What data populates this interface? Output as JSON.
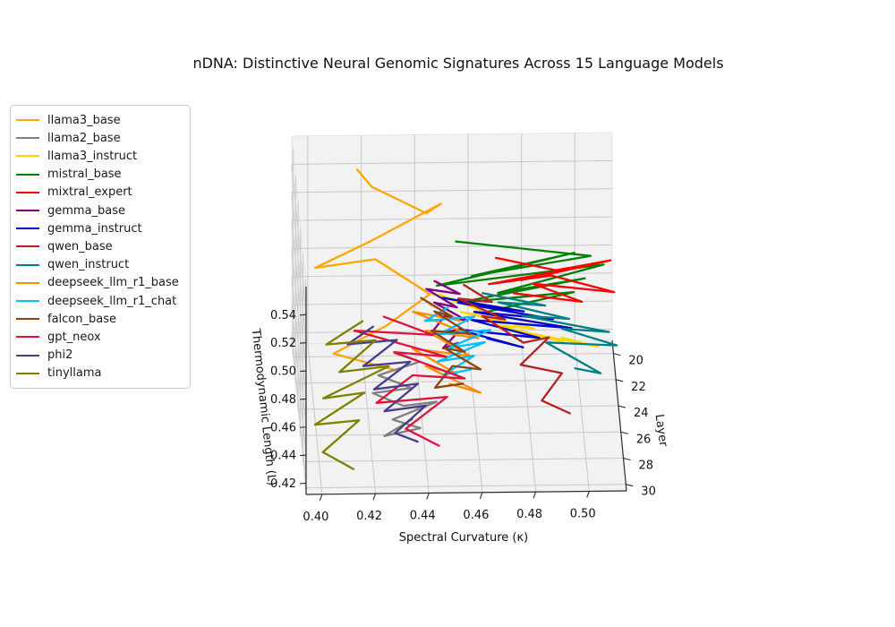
{
  "title": "nDNA: Distinctive Neural Genomic Signatures Across 15 Language Models",
  "chart_data": {
    "type": "line",
    "projection": "3d",
    "title": "nDNA: Distinctive Neural Genomic Signatures Across 15 Language Models",
    "xlabel": "Spectral Curvature (κ)",
    "ylabel": "Layer",
    "zlabel": "Thermodynamic Length (L)",
    "legend_position": "upper left",
    "grid": true,
    "x_range": [
      0.394,
      0.514
    ],
    "y_range": [
      19,
      30.5
    ],
    "z_range": [
      0.412,
      0.56
    ],
    "x_ticks": {
      "values": [
        0.4,
        0.42,
        0.44,
        0.46,
        0.48,
        0.5
      ],
      "labels": [
        "0.40",
        "0.42",
        "0.44",
        "0.46",
        "0.48",
        "0.50"
      ]
    },
    "y_ticks": {
      "values": [
        20,
        22,
        24,
        26,
        28,
        30
      ],
      "labels": [
        "20",
        "22",
        "24",
        "26",
        "28",
        "30"
      ]
    },
    "z_ticks": {
      "values": [
        0.42,
        0.44,
        0.46,
        0.48,
        0.5,
        0.52,
        0.54
      ],
      "labels": [
        "0.42",
        "0.44",
        "0.46",
        "0.48",
        "0.50",
        "0.52",
        "0.54"
      ]
    },
    "point_format": [
      "spectral_curvature_kappa",
      "layer",
      "thermodynamic_length_L"
    ],
    "series": [
      {
        "name": "llama3_base",
        "color": "#FFA500",
        "points": [
          [
            0.418,
            20,
            0.545
          ],
          [
            0.423,
            21,
            0.542
          ],
          [
            0.443,
            22,
            0.532
          ],
          [
            0.448,
            23,
            0.548
          ],
          [
            0.421,
            24,
            0.531
          ],
          [
            0.4,
            25,
            0.522
          ],
          [
            0.422,
            26,
            0.537
          ],
          [
            0.442,
            27,
            0.521
          ],
          [
            0.425,
            28,
            0.508
          ],
          [
            0.405,
            29,
            0.498
          ],
          [
            0.428,
            30,
            0.495
          ]
        ]
      },
      {
        "name": "llama2_base",
        "color": "#808080",
        "points": [
          [
            0.432,
            20,
            0.414
          ],
          [
            0.441,
            21,
            0.417
          ],
          [
            0.425,
            22,
            0.417
          ],
          [
            0.437,
            23,
            0.417
          ],
          [
            0.422,
            24,
            0.423
          ],
          [
            0.433,
            25,
            0.423
          ],
          [
            0.445,
            26,
            0.435
          ],
          [
            0.428,
            27,
            0.432
          ],
          [
            0.438,
            28,
            0.435
          ],
          [
            0.424,
            29,
            0.439
          ],
          [
            0.434,
            30,
            0.46
          ]
        ]
      },
      {
        "name": "llama3_instruct",
        "color": "#FFD700",
        "points": [
          [
            0.446,
            20,
            0.456
          ],
          [
            0.46,
            21,
            0.456
          ],
          [
            0.448,
            22,
            0.474
          ],
          [
            0.472,
            23,
            0.465
          ],
          [
            0.455,
            24,
            0.48
          ],
          [
            0.482,
            25,
            0.477
          ],
          [
            0.468,
            26,
            0.489
          ],
          [
            0.492,
            27,
            0.486
          ],
          [
            0.478,
            28,
            0.502
          ],
          [
            0.504,
            29,
            0.501
          ],
          [
            0.49,
            30,
            0.517
          ]
        ]
      },
      {
        "name": "mistral_base",
        "color": "#008000",
        "points": [
          [
            0.455,
            20,
            0.493
          ],
          [
            0.505,
            21,
            0.491
          ],
          [
            0.46,
            22,
            0.487
          ],
          [
            0.498,
            23,
            0.512
          ],
          [
            0.446,
            24,
            0.499
          ],
          [
            0.508,
            25,
            0.522
          ],
          [
            0.468,
            26,
            0.512
          ],
          [
            0.5,
            27,
            0.531
          ],
          [
            0.452,
            28,
            0.524
          ],
          [
            0.495,
            29,
            0.54
          ],
          [
            0.462,
            30,
            0.536
          ]
        ]
      },
      {
        "name": "mixtral_expert",
        "color": "#FF0000",
        "points": [
          [
            0.47,
            20,
            0.481
          ],
          [
            0.492,
            21,
            0.481
          ],
          [
            0.512,
            22,
            0.497
          ],
          [
            0.478,
            23,
            0.493
          ],
          [
            0.502,
            24,
            0.512
          ],
          [
            0.465,
            25,
            0.509
          ],
          [
            0.488,
            26,
            0.524
          ],
          [
            0.511,
            27,
            0.521
          ],
          [
            0.48,
            28,
            0.537
          ],
          [
            0.498,
            29,
            0.533
          ],
          [
            0.472,
            30,
            0.549
          ]
        ]
      },
      {
        "name": "gemma_base",
        "color": "#800080",
        "points": [
          [
            0.447,
            20,
            0.465
          ],
          [
            0.456,
            21,
            0.465
          ],
          [
            0.443,
            22,
            0.478
          ],
          [
            0.454,
            23,
            0.474
          ],
          [
            0.445,
            24,
            0.487
          ],
          [
            0.457,
            25,
            0.483
          ],
          [
            0.448,
            26,
            0.496
          ],
          [
            0.442,
            27,
            0.492
          ],
          [
            0.453,
            28,
            0.505
          ],
          [
            0.446,
            29,
            0.501
          ],
          [
            0.451,
            30,
            0.514
          ]
        ]
      },
      {
        "name": "gemma_instruct",
        "color": "#0000CD",
        "points": [
          [
            0.45,
            20,
            0.453
          ],
          [
            0.48,
            21,
            0.452
          ],
          [
            0.455,
            22,
            0.468
          ],
          [
            0.49,
            23,
            0.465
          ],
          [
            0.46,
            24,
            0.48
          ],
          [
            0.496,
            25,
            0.477
          ],
          [
            0.458,
            26,
            0.493
          ],
          [
            0.483,
            27,
            0.489
          ],
          [
            0.452,
            28,
            0.505
          ],
          [
            0.476,
            29,
            0.501
          ],
          [
            0.462,
            30,
            0.517
          ]
        ]
      },
      {
        "name": "qwen_base",
        "color": "#B22222",
        "points": [
          [
            0.458,
            20,
            0.462
          ],
          [
            0.468,
            21,
            0.459
          ],
          [
            0.455,
            22,
            0.471
          ],
          [
            0.472,
            23,
            0.465
          ],
          [
            0.463,
            24,
            0.477
          ],
          [
            0.478,
            25,
            0.467
          ],
          [
            0.487,
            26,
            0.48
          ],
          [
            0.476,
            27,
            0.47
          ],
          [
            0.491,
            28,
            0.473
          ],
          [
            0.483,
            29,
            0.463
          ],
          [
            0.493,
            30,
            0.463
          ]
        ]
      },
      {
        "name": "qwen_instruct",
        "color": "#008080",
        "points": [
          [
            0.465,
            20,
            0.456
          ],
          [
            0.488,
            21,
            0.456
          ],
          [
            0.47,
            22,
            0.468
          ],
          [
            0.496,
            23,
            0.465
          ],
          [
            0.478,
            24,
            0.477
          ],
          [
            0.51,
            25,
            0.474
          ],
          [
            0.492,
            26,
            0.486
          ],
          [
            0.512,
            27,
            0.483
          ],
          [
            0.485,
            28,
            0.495
          ],
          [
            0.505,
            29,
            0.482
          ],
          [
            0.495,
            30,
            0.495
          ]
        ]
      },
      {
        "name": "deepseek_llm_r1_base",
        "color": "#FF8C00",
        "points": [
          [
            0.445,
            20,
            0.449
          ],
          [
            0.456,
            21,
            0.446
          ],
          [
            0.438,
            22,
            0.462
          ],
          [
            0.462,
            23,
            0.452
          ],
          [
            0.442,
            24,
            0.467
          ],
          [
            0.458,
            25,
            0.458
          ],
          [
            0.436,
            26,
            0.473
          ],
          [
            0.452,
            27,
            0.464
          ],
          [
            0.44,
            28,
            0.479
          ],
          [
            0.46,
            29,
            0.469
          ],
          [
            0.448,
            30,
            0.485
          ]
        ]
      },
      {
        "name": "deepseek_llm_r1_chat",
        "color": "#00BFFF",
        "points": [
          [
            0.452,
            20,
            0.446
          ],
          [
            0.443,
            21,
            0.446
          ],
          [
            0.461,
            22,
            0.458
          ],
          [
            0.447,
            23,
            0.455
          ],
          [
            0.466,
            24,
            0.467
          ],
          [
            0.45,
            25,
            0.464
          ],
          [
            0.463,
            26,
            0.477
          ],
          [
            0.445,
            27,
            0.473
          ],
          [
            0.458,
            28,
            0.486
          ],
          [
            0.446,
            29,
            0.482
          ],
          [
            0.456,
            30,
            0.495
          ]
        ]
      },
      {
        "name": "falcon_base",
        "color": "#8B4513",
        "points": [
          [
            0.442,
            20,
            0.453
          ],
          [
            0.453,
            21,
            0.449
          ],
          [
            0.446,
            22,
            0.462
          ],
          [
            0.459,
            23,
            0.455
          ],
          [
            0.444,
            24,
            0.467
          ],
          [
            0.456,
            25,
            0.461
          ],
          [
            0.448,
            26,
            0.473
          ],
          [
            0.461,
            27,
            0.467
          ],
          [
            0.45,
            28,
            0.479
          ],
          [
            0.443,
            29,
            0.473
          ],
          [
            0.453,
            30,
            0.485
          ]
        ]
      },
      {
        "name": "gpt_neox",
        "color": "#DC143C",
        "points": [
          [
            0.428,
            20,
            0.44
          ],
          [
            0.446,
            21,
            0.436
          ],
          [
            0.416,
            22,
            0.449
          ],
          [
            0.45,
            23,
            0.439
          ],
          [
            0.43,
            24,
            0.452
          ],
          [
            0.456,
            25,
            0.442
          ],
          [
            0.436,
            26,
            0.454
          ],
          [
            0.422,
            27,
            0.444
          ],
          [
            0.448,
            28,
            0.457
          ],
          [
            0.432,
            29,
            0.444
          ],
          [
            0.444,
            30,
            0.441
          ]
        ]
      },
      {
        "name": "phi2",
        "color": "#483D8B",
        "points": [
          [
            0.424,
            20,
            0.433
          ],
          [
            0.414,
            21,
            0.43
          ],
          [
            0.432,
            22,
            0.442
          ],
          [
            0.419,
            23,
            0.433
          ],
          [
            0.436,
            24,
            0.445
          ],
          [
            0.422,
            25,
            0.435
          ],
          [
            0.438,
            26,
            0.448
          ],
          [
            0.425,
            27,
            0.438
          ],
          [
            0.44,
            28,
            0.451
          ],
          [
            0.428,
            29,
            0.441
          ],
          [
            0.436,
            30,
            0.444
          ]
        ]
      },
      {
        "name": "tinyllama",
        "color": "#808000",
        "points": [
          [
            0.42,
            20,
            0.437
          ],
          [
            0.406,
            21,
            0.43
          ],
          [
            0.424,
            22,
            0.442
          ],
          [
            0.41,
            23,
            0.429
          ],
          [
            0.428,
            24,
            0.442
          ],
          [
            0.403,
            25,
            0.429
          ],
          [
            0.418,
            26,
            0.442
          ],
          [
            0.399,
            27,
            0.429
          ],
          [
            0.415,
            28,
            0.441
          ],
          [
            0.401,
            29,
            0.428
          ],
          [
            0.412,
            30,
            0.425
          ]
        ]
      }
    ]
  }
}
